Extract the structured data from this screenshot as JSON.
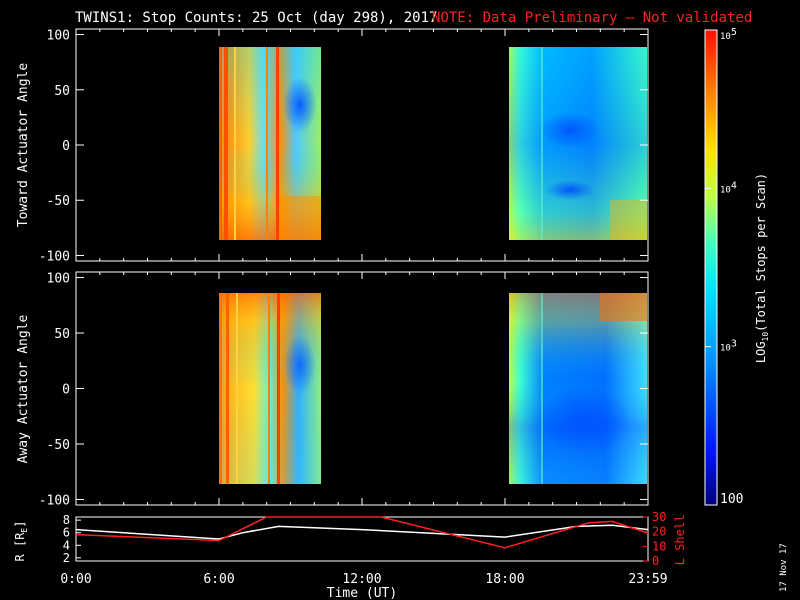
{
  "title": {
    "main": "TWINS1: Stop Counts: 25 Oct (day 298), 2017",
    "note": "NOTE: Data Preliminary — Not validated"
  },
  "panel_top": {
    "ylabel": "Toward Actuator Angle",
    "yticks": [
      "100",
      "50",
      "0",
      "-50",
      "-100"
    ]
  },
  "panel_bottom": {
    "ylabel": "Away Actuator Angle",
    "yticks": [
      "100",
      "50",
      "0",
      "-50",
      "-100"
    ]
  },
  "ephem": {
    "ylabel_left": "R [R",
    "ylabel_left_sub": "E",
    "ylabel_left_end": "]",
    "ylabel_right": "L Shell",
    "yticks_left": [
      "8",
      "6",
      "4",
      "2"
    ],
    "yticks_right": [
      "30",
      "20",
      "10",
      "0"
    ]
  },
  "xaxis": {
    "label": "Time (UT)",
    "ticks": [
      "0:00",
      "6:00",
      "12:00",
      "18:00",
      "23:59"
    ]
  },
  "colorbar": {
    "label": "LOG",
    "label_sub": "10",
    "label_rest": "(Total Stops per Scan)",
    "ticks": [
      "10",
      "10",
      "10",
      "100"
    ],
    "tick_exps": [
      "5",
      "4",
      "3",
      ""
    ]
  },
  "date_stamp": "17 Nov 17",
  "chart_data": [
    {
      "type": "heatmap",
      "name": "Toward Actuator Angle stop counts",
      "x_range_hours": [
        0,
        24
      ],
      "ylim": [
        -105,
        105
      ],
      "data_blocks_hours": [
        [
          6.0,
          10.8
        ],
        [
          19.4,
          23.99
        ]
      ],
      "data_angle_range": [
        -90,
        90
      ],
      "color_scale": "log10",
      "color_range": [
        100,
        100000
      ]
    },
    {
      "type": "heatmap",
      "name": "Away Actuator Angle stop counts",
      "x_range_hours": [
        0,
        24
      ],
      "ylim": [
        -105,
        105
      ],
      "data_blocks_hours": [
        [
          6.0,
          10.8
        ],
        [
          19.4,
          23.99
        ]
      ],
      "data_angle_range": [
        -90,
        90
      ],
      "color_scale": "log10",
      "color_range": [
        100,
        100000
      ]
    },
    {
      "type": "line",
      "name": "ephemeris",
      "series": [
        {
          "name": "R [RE]",
          "axis": "left",
          "color": "#ffffff",
          "x": [
            0,
            6,
            7,
            8.5,
            12,
            18,
            21,
            22.5,
            24
          ],
          "y": [
            6.5,
            5,
            6,
            7,
            6.5,
            5.3,
            7,
            7.2,
            6.5
          ]
        },
        {
          "name": "L Shell",
          "axis": "right",
          "color": "#ff2020",
          "x": [
            0,
            6,
            8,
            12.8,
            18,
            21.5,
            22.5,
            24
          ],
          "y": [
            18,
            14,
            30,
            30,
            9,
            26,
            27,
            19
          ]
        }
      ],
      "ylim_left": [
        1.5,
        8.5
      ],
      "ylim_right": [
        0,
        30
      ]
    }
  ]
}
